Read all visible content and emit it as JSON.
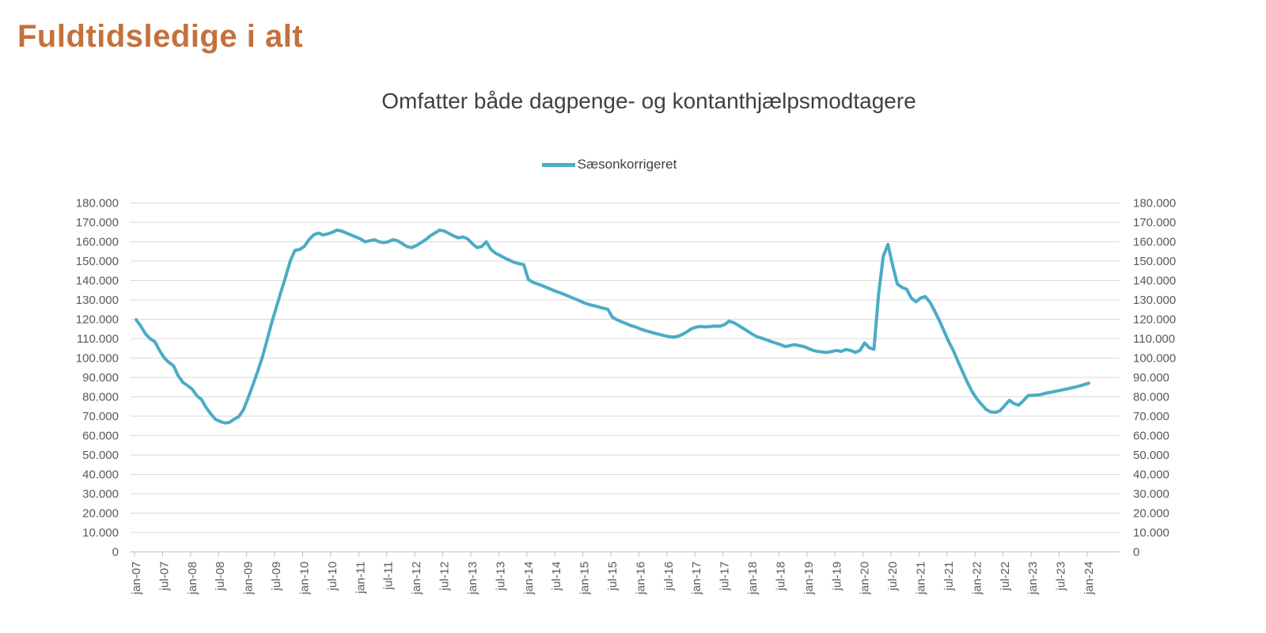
{
  "page": {
    "title": "Fuldtidsledige i alt"
  },
  "style": {
    "background": "#FFFFFF",
    "title_color": "#C4713B",
    "subtitle_color": "#404040",
    "legend_text_color": "#404040",
    "axis_text_color": "#595959",
    "grid_color": "#D9D9D9",
    "axis_line_color": "#BFBFBF",
    "line_color": "#4BACC6"
  },
  "chart_data": {
    "type": "line",
    "title": "Omfatter både dagpenge- og kontanthjælpsmodtagere",
    "legend_position": "top",
    "grid": "horizontal",
    "dual_y_axis": true,
    "ylim": [
      0,
      180000
    ],
    "y_tick_step": 10000,
    "y_tick_labels": [
      "0",
      "10.000",
      "20.000",
      "30.000",
      "40.000",
      "50.000",
      "60.000",
      "70.000",
      "80.000",
      "90.000",
      "100.000",
      "110.000",
      "120.000",
      "130.000",
      "140.000",
      "150.000",
      "160.000",
      "170.000",
      "180.000"
    ],
    "x_tick_labels": [
      "jan-07",
      "jul-07",
      "jan-08",
      "jul-08",
      "jan-09",
      "jul-09",
      "jan-10",
      "jul-10",
      "jan-11",
      "jul-11",
      "jan-12",
      "jul-12",
      "jan-13",
      "jul-13",
      "jan-14",
      "jul-14",
      "jan-15",
      "jul-15",
      "jan-16",
      "jul-16",
      "jan-17",
      "jul-17",
      "jan-18",
      "jul-18",
      "jan-19",
      "jul-19",
      "jan-20",
      "jul-20",
      "jan-21",
      "jul-21",
      "jan-22",
      "jul-22",
      "jan-23",
      "jul-23",
      "jan-24"
    ],
    "x_months_per_tick": 6,
    "series": [
      {
        "name": "Sæsonkorrigeret",
        "color": "#4BACC6",
        "start": "jan-07",
        "end": "jan-24",
        "frequency": "monthly",
        "values": [
          119800,
          116500,
          112500,
          110000,
          108500,
          104000,
          100200,
          97800,
          96100,
          91000,
          87500,
          85800,
          84000,
          80600,
          78600,
          74500,
          71200,
          68400,
          67300,
          66500,
          66800,
          68400,
          69800,
          73300,
          79400,
          86000,
          92900,
          100200,
          109000,
          118000,
          126000,
          134000,
          141800,
          150000,
          155500,
          156000,
          157500,
          161000,
          163500,
          164500,
          163500,
          164000,
          164800,
          166000,
          165500,
          164500,
          163500,
          162500,
          161500,
          160000,
          160500,
          161000,
          160000,
          159500,
          160000,
          161000,
          160500,
          159000,
          157500,
          157000,
          158000,
          159500,
          161000,
          163000,
          164500,
          166000,
          165500,
          164300,
          163000,
          162000,
          162500,
          161500,
          159000,
          157000,
          157500,
          160000,
          156000,
          154000,
          152800,
          151500,
          150400,
          149300,
          148700,
          148200,
          140500,
          139000,
          138200,
          137300,
          136300,
          135300,
          134300,
          133500,
          132500,
          131500,
          130500,
          129500,
          128400,
          127600,
          127000,
          126400,
          125700,
          125200,
          121000,
          119700,
          118700,
          117700,
          116700,
          116000,
          115000,
          114200,
          113500,
          112800,
          112200,
          111600,
          111100,
          110800,
          111200,
          112200,
          113600,
          115200,
          116000,
          116300,
          116100,
          116300,
          116500,
          116400,
          117200,
          119000,
          118200,
          116800,
          115300,
          113800,
          112200,
          111000,
          110200,
          109400,
          108500,
          107700,
          106900,
          105900,
          106400,
          106900,
          106400,
          105900,
          104900,
          103900,
          103400,
          103100,
          102900,
          103400,
          103900,
          103400,
          104400,
          103900,
          102900,
          103900,
          107800,
          105300,
          104500,
          133000,
          152500,
          158600,
          148000,
          138200,
          136500,
          135500,
          131000,
          129000,
          131000,
          131700,
          128800,
          124300,
          119400,
          114000,
          108500,
          103900,
          98300,
          92900,
          87600,
          82700,
          79000,
          76200,
          73500,
          72200,
          72000,
          72800,
          75500,
          78200,
          76500,
          75700,
          78000,
          80600,
          80800,
          80900,
          81300,
          82000,
          82400,
          82900,
          83400,
          83900,
          84400,
          85000,
          85600,
          86300,
          87000
        ]
      }
    ]
  }
}
